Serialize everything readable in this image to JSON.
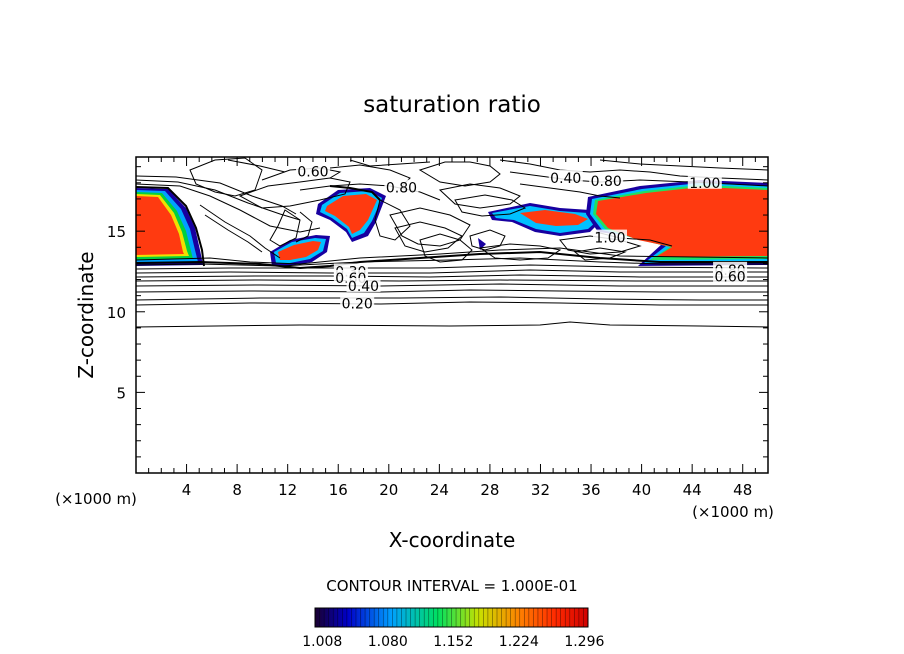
{
  "chart_data": {
    "type": "heatmap",
    "title": "saturation ratio",
    "xlabel": "X-coordinate",
    "ylabel": "Z-coordinate",
    "x_unit": "(×1000 m)",
    "z_unit": "(×1000 m)",
    "xlim": [
      0,
      50
    ],
    "ylim": [
      0,
      19.6
    ],
    "x_ticks": [
      "4",
      "8",
      "12",
      "16",
      "20",
      "24",
      "28",
      "32",
      "36",
      "40",
      "44",
      "48"
    ],
    "y_ticks": [
      "5",
      "10",
      "15"
    ],
    "contour_interval_label": "CONTOUR INTERVAL = 1.000E-01",
    "colorbar_ticks": [
      "1.008",
      "1.080",
      "1.152",
      "1.224",
      "1.296"
    ],
    "colorbar_range": [
      1.0,
      1.3
    ],
    "contour_labels": [
      {
        "text": "0.60",
        "x": 14.0,
        "z": 18.7
      },
      {
        "text": "0.80",
        "x": 21.0,
        "z": 17.7
      },
      {
        "text": "0.40",
        "x": 34.0,
        "z": 18.3
      },
      {
        "text": "0.80",
        "x": 37.2,
        "z": 18.1
      },
      {
        "text": "1.00",
        "x": 45.0,
        "z": 18.0
      },
      {
        "text": "1.00",
        "x": 37.5,
        "z": 14.6
      },
      {
        "text": "0.80",
        "x": 47.0,
        "z": 12.6
      },
      {
        "text": "0.60",
        "x": 47.0,
        "z": 12.2
      },
      {
        "text": "0.30",
        "x": 17.0,
        "z": 12.5
      },
      {
        "text": "0.60",
        "x": 17.0,
        "z": 12.1
      },
      {
        "text": "0.40",
        "x": 18.0,
        "z": 11.6
      },
      {
        "text": "0.20",
        "x": 17.5,
        "z": 10.5
      }
    ],
    "supersaturated_regions": [
      {
        "x": [
          0.2,
          5.2
        ],
        "z": [
          13.3,
          17.7
        ],
        "peak": 1.3
      },
      {
        "x": [
          11.0,
          15.8
        ],
        "z": [
          12.9,
          14.9
        ],
        "peak": 1.28
      },
      {
        "x": [
          14.0,
          19.5
        ],
        "z": [
          14.8,
          17.6
        ],
        "peak": 1.3
      },
      {
        "x": [
          27.8,
          36.0
        ],
        "z": [
          14.3,
          16.4
        ],
        "peak": 1.25
      },
      {
        "x": [
          36.0,
          50.0
        ],
        "z": [
          13.3,
          17.9
        ],
        "peak": 1.3
      }
    ],
    "level_contours": [
      {
        "level": 0.2,
        "z": 9.2
      },
      {
        "level": 0.2,
        "z": 10.6
      },
      {
        "level": 0.4,
        "z": 11.7
      },
      {
        "level": 0.6,
        "z": 12.2
      },
      {
        "level": 0.8,
        "z": 12.6
      },
      {
        "level": 0.9,
        "z": 13.0
      }
    ]
  }
}
